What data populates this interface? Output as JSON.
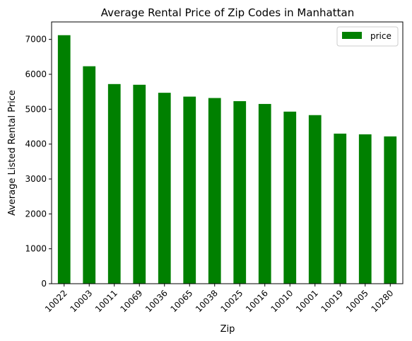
{
  "chart_data": {
    "type": "bar",
    "title": "Average Rental Price of Zip Codes in Manhattan",
    "xlabel": "Zip",
    "ylabel": "Average Listed Rental Price",
    "categories": [
      "10022",
      "10003",
      "10011",
      "10069",
      "10036",
      "10065",
      "10038",
      "10025",
      "10016",
      "10010",
      "10001",
      "10019",
      "10005",
      "10280"
    ],
    "series": [
      {
        "name": "price",
        "color": "#008000",
        "values": [
          7120,
          6230,
          5720,
          5700,
          5470,
          5360,
          5320,
          5230,
          5150,
          4930,
          4830,
          4300,
          4280,
          4220
        ]
      }
    ],
    "ylim": [
      0,
      7500
    ],
    "yticks": [
      "0",
      "1000",
      "2000",
      "3000",
      "4000",
      "5000",
      "6000",
      "7000"
    ],
    "grid": false,
    "legend_position": "top-right"
  }
}
